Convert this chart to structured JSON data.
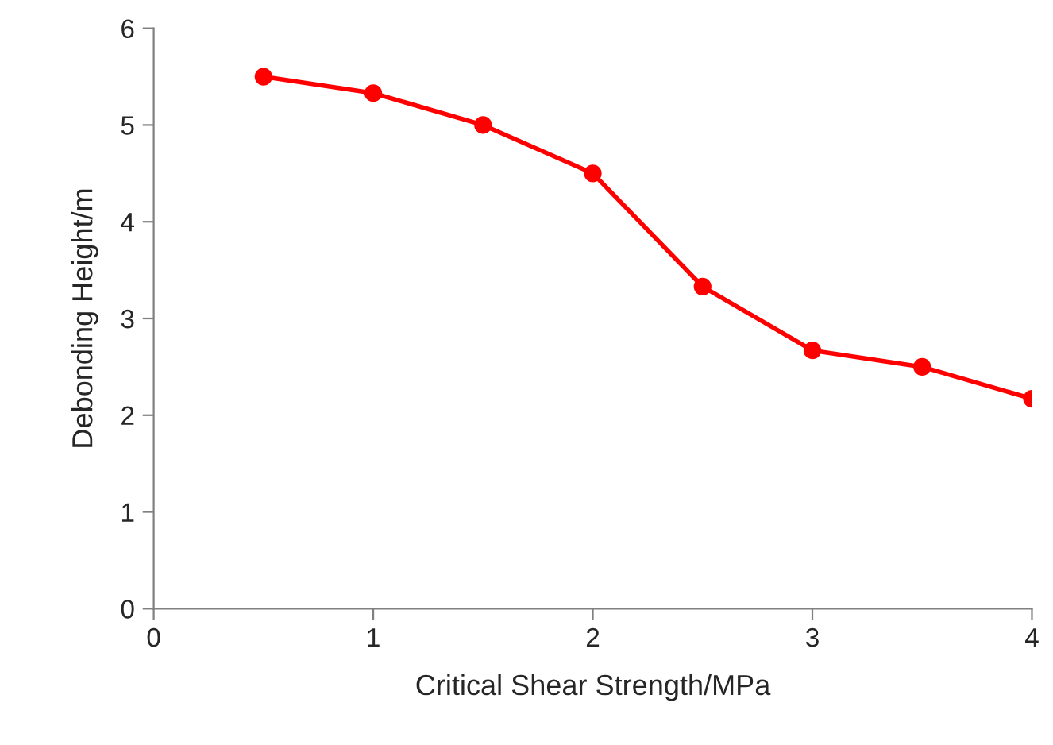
{
  "chart_data": {
    "type": "line",
    "xlabel": "Critical Shear Strength/MPa",
    "ylabel": "Debonding Height/m",
    "x": [
      0.5,
      1,
      1.5,
      2,
      2.5,
      3,
      3.5,
      4
    ],
    "series": [
      {
        "color": "#ff0000",
        "values": [
          5.5,
          5.33,
          5.0,
          4.5,
          3.33,
          2.67,
          2.5,
          2.17
        ]
      }
    ],
    "xlim": [
      0,
      4
    ],
    "ylim": [
      0,
      6
    ],
    "xticks": [
      0,
      1,
      2,
      3,
      4
    ],
    "yticks": [
      0,
      1,
      2,
      3,
      4,
      5,
      6
    ],
    "grid": false,
    "legend": false,
    "marker": "circle",
    "line_style": "solid"
  }
}
